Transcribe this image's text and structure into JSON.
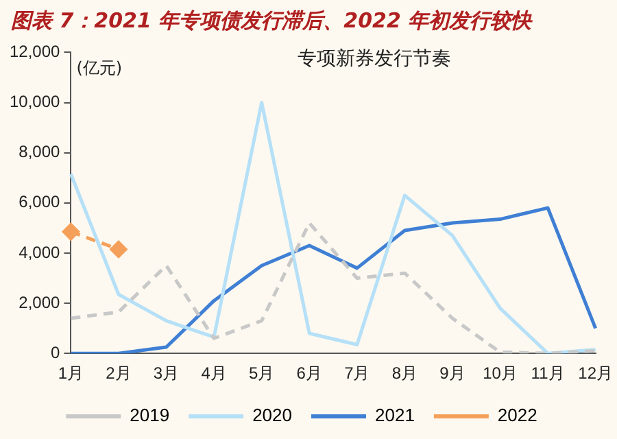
{
  "chart_data": {
    "type": "line",
    "title": "图表 7：2021 年专项债发行滞后、2022 年初发行较快",
    "subtitle": "专项新券发行节奏",
    "ylabel": "(亿元)",
    "categories": [
      "1月",
      "2月",
      "3月",
      "4月",
      "5月",
      "6月",
      "7月",
      "8月",
      "9月",
      "10月",
      "11月",
      "12月"
    ],
    "series": [
      {
        "name": "2019",
        "color": "#c8c8c8",
        "line_style": "dashed",
        "marker": "none",
        "values": [
          1400,
          1650,
          3500,
          600,
          1300,
          5200,
          3000,
          3200,
          1400,
          50,
          0,
          100
        ]
      },
      {
        "name": "2020",
        "color": "#b5e0f7",
        "line_style": "solid",
        "marker": "none",
        "values": [
          7150,
          2350,
          1300,
          650,
          10000,
          800,
          350,
          6300,
          4700,
          1800,
          0,
          150
        ]
      },
      {
        "name": "2021",
        "color": "#3f7fd4",
        "line_style": "solid",
        "marker": "none",
        "values": [
          0,
          0,
          250,
          2100,
          3500,
          4300,
          3400,
          4900,
          5200,
          5350,
          5800,
          1000
        ]
      },
      {
        "name": "2022",
        "color": "#f5a05a",
        "line_style": "dashed",
        "marker": "diamond",
        "values": [
          4850,
          4150,
          null,
          null,
          null,
          null,
          null,
          null,
          null,
          null,
          null,
          null
        ]
      }
    ],
    "ylim": [
      0,
      12000
    ],
    "yticks": [
      0,
      {
        "value": 2000,
        "label": "2,000"
      },
      {
        "value": 4000,
        "label": "4,000"
      },
      {
        "value": 6000,
        "label": "6,000"
      },
      {
        "value": 8000,
        "label": "8,000"
      },
      {
        "value": 10000,
        "label": "10,000"
      },
      {
        "value": 12000,
        "label": "12,000"
      }
    ],
    "grid": false,
    "legend": "bottom"
  }
}
